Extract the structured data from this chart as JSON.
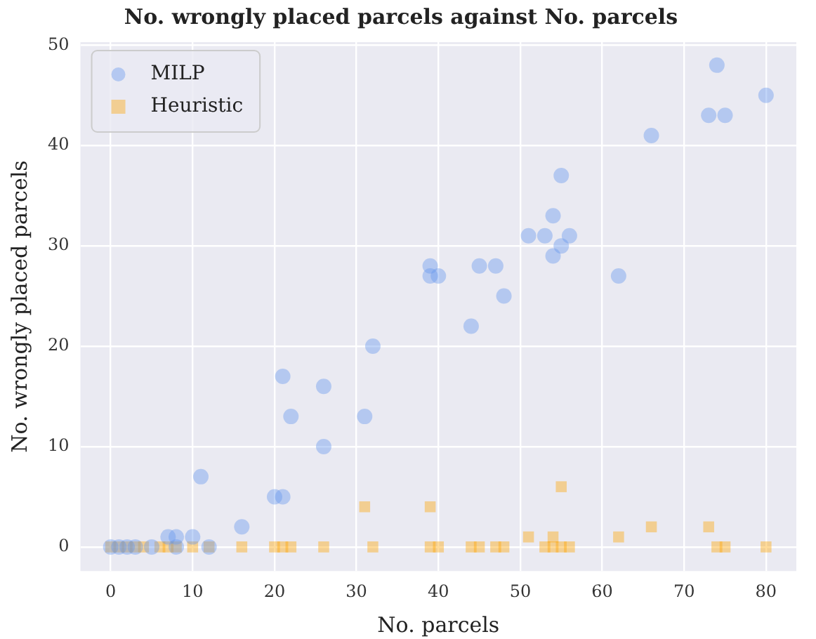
{
  "chart_data": {
    "type": "scatter",
    "title": "No. wrongly placed parcels against No. parcels",
    "xlabel": "No. parcels",
    "ylabel": "No. wrongly placed parcels",
    "xlim": [
      -3.7,
      83.7
    ],
    "ylim": [
      -2.4,
      50.3
    ],
    "xticks": [
      0,
      10,
      20,
      30,
      40,
      50,
      60,
      70,
      80
    ],
    "yticks": [
      0,
      10,
      20,
      30,
      40,
      50
    ],
    "grid": true,
    "legend": "top left",
    "series": [
      {
        "name": "MILP",
        "color": "#6495ed",
        "marker": "circle",
        "x": [
          0,
          1,
          2,
          3,
          5,
          7,
          8,
          8,
          10,
          11,
          12,
          16,
          20,
          21,
          21,
          22,
          26,
          26,
          31,
          32,
          39,
          39,
          40,
          44,
          45,
          47,
          48,
          51,
          53,
          54,
          54,
          55,
          55,
          56,
          62,
          66,
          73,
          74,
          75,
          80
        ],
        "values": [
          0,
          0,
          0,
          0,
          0,
          1,
          1,
          0,
          1,
          7,
          0,
          2,
          5,
          5,
          17,
          13,
          16,
          10,
          13,
          20,
          28,
          27,
          27,
          22,
          28,
          28,
          25,
          31,
          31,
          33,
          29,
          37,
          30,
          31,
          27,
          41,
          43,
          48,
          43,
          45
        ]
      },
      {
        "name": "Heuristic",
        "color": "#ffa500",
        "marker": "square",
        "x": [
          0,
          1,
          2,
          3,
          4,
          6,
          7,
          8,
          10,
          12,
          16,
          20,
          21,
          22,
          26,
          31,
          32,
          39,
          39,
          40,
          44,
          45,
          47,
          48,
          51,
          53,
          54,
          54,
          55,
          55,
          56,
          62,
          66,
          73,
          74,
          75,
          80
        ],
        "values": [
          0,
          0,
          0,
          0,
          0,
          0,
          0,
          0,
          0,
          0,
          0,
          0,
          0,
          0,
          0,
          4,
          0,
          4,
          0,
          0,
          0,
          0,
          0,
          0,
          1,
          0,
          1,
          0,
          6,
          0,
          0,
          1,
          2,
          2,
          0,
          0,
          0
        ]
      }
    ]
  }
}
